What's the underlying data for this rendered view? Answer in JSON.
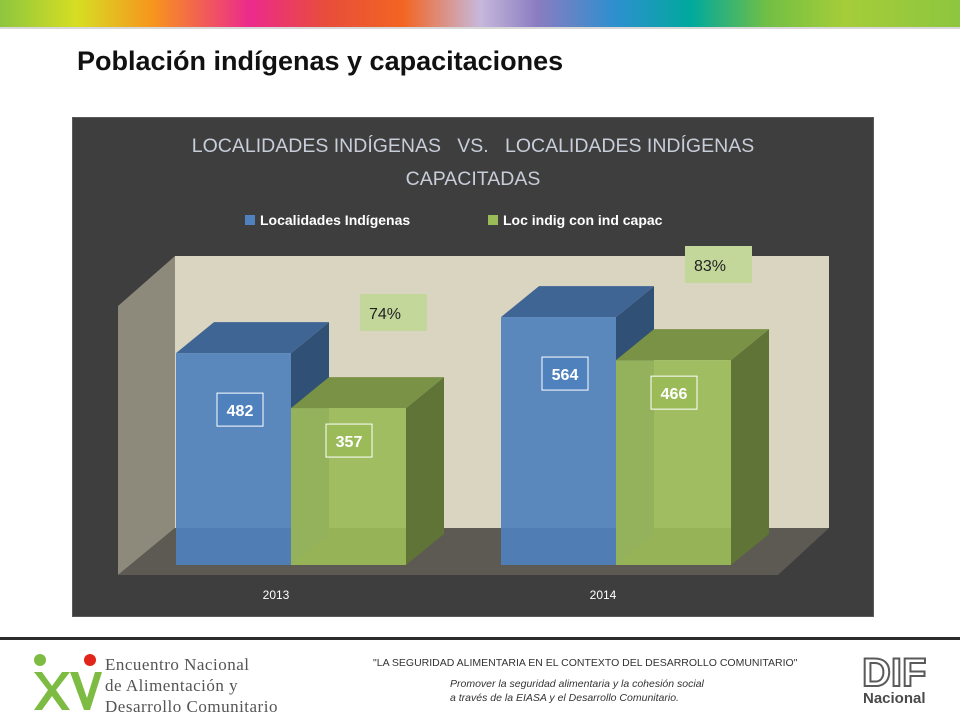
{
  "page": {
    "title": "Población indígenas y capacitaciones"
  },
  "chart_data": {
    "type": "bar",
    "title_lines": [
      "LOCALIDADES INDÍGENAS   VS.   LOCALIDADES INDÍGENAS",
      "CAPACITADAS"
    ],
    "categories": [
      "2013",
      "2014"
    ],
    "series": [
      {
        "name": "Localidades Indígenas",
        "values": [
          482,
          564
        ],
        "color": "#4f81bd"
      },
      {
        "name": "Loc indig con ind capac",
        "values": [
          357,
          466
        ],
        "color": "#9bbb59"
      }
    ],
    "percent_labels": [
      "74%",
      "83%"
    ],
    "ylim": [
      0,
      600
    ],
    "legend_position": "top",
    "three_d": true,
    "background": "#3e3e3e",
    "wall_color": "#d9d5c1"
  },
  "footer": {
    "event_line1": "Encuentro Nacional",
    "event_line2": "de Alimentación y",
    "event_line3": "Desarrollo Comunitario",
    "slogan": "\"LA SEGURIDAD ALIMENTARIA EN EL CONTEXTO DEL DESARROLLO COMUNITARIO\"",
    "sub_line1": "Promover la seguridad alimentaria y la cohesión social",
    "sub_line2": "a través de la EIASA y el Desarrollo Comunitario.",
    "org_logo_text": "DIF",
    "org_name": "Nacional"
  }
}
